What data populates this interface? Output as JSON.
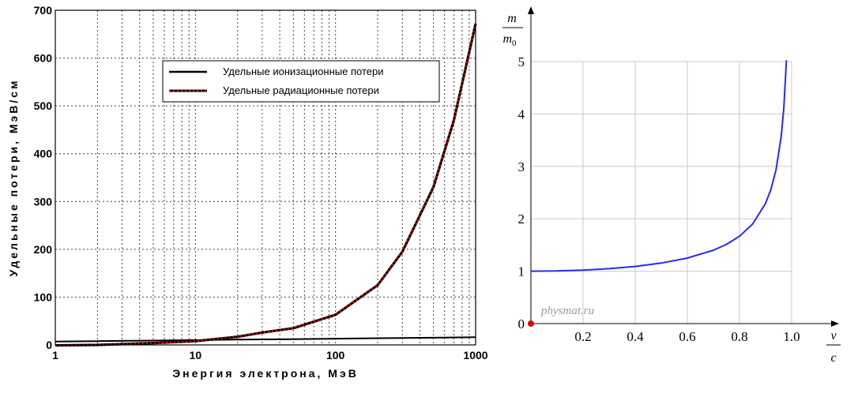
{
  "chart_data": [
    {
      "type": "line",
      "title": "",
      "xlabel": "Энергия электрона, МэВ",
      "ylabel": "Удельные потери, МэВ/см",
      "xscale": "log",
      "xlim": [
        1,
        1000
      ],
      "ylim": [
        0,
        700
      ],
      "grid": true,
      "legend_position": "upper-center",
      "x_ticks": [
        "1",
        "10",
        "100",
        "1000"
      ],
      "y_ticks": [
        "0",
        "100",
        "200",
        "300",
        "400",
        "500",
        "600",
        "700"
      ],
      "series": [
        {
          "name": "Удельные ионизационные потери",
          "style": "solid",
          "color": "#000000",
          "x": [
            1,
            2,
            5,
            10,
            20,
            50,
            100,
            200,
            500,
            1000
          ],
          "y": [
            7,
            8,
            9,
            10,
            11,
            12,
            13,
            14,
            15,
            16
          ]
        },
        {
          "name": "Удельные радиационные потери",
          "style": "dotted",
          "color": "#cc0000",
          "x": [
            1,
            2,
            5,
            10,
            20,
            30,
            50,
            100,
            200,
            300,
            500,
            700,
            1000
          ],
          "y": [
            -1,
            0,
            4,
            8,
            17,
            26,
            35,
            63,
            125,
            195,
            330,
            470,
            672
          ]
        }
      ]
    },
    {
      "type": "line",
      "title": "",
      "xlabel": {
        "num": "v",
        "den": "c"
      },
      "ylabel": {
        "num": "m",
        "den": "m",
        "den_sub": "0"
      },
      "xlim": [
        0,
        1.05
      ],
      "ylim": [
        0,
        5.3
      ],
      "grid": true,
      "x_ticks": [
        "0.2",
        "0.4",
        "0.6",
        "0.8",
        "1.0"
      ],
      "y_ticks": [
        "0",
        "1",
        "2",
        "3",
        "4",
        "5"
      ],
      "watermark": "physmat.ru",
      "series": [
        {
          "color": "#2a2aee",
          "x": [
            0,
            0.1,
            0.2,
            0.3,
            0.4,
            0.5,
            0.6,
            0.7,
            0.75,
            0.8,
            0.85,
            0.9,
            0.92,
            0.94,
            0.96,
            0.97,
            0.98
          ],
          "y": [
            1.0,
            1.005,
            1.021,
            1.048,
            1.091,
            1.155,
            1.25,
            1.4,
            1.512,
            1.667,
            1.898,
            2.294,
            2.552,
            2.931,
            3.571,
            4.113,
            5.025
          ]
        }
      ]
    }
  ]
}
